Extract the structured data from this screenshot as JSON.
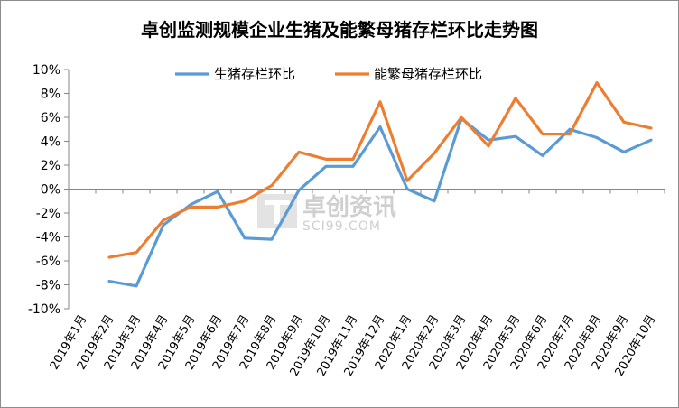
{
  "watermark": {
    "brand": "卓创资讯",
    "site": "SCI99.COM"
  },
  "chart_data": {
    "type": "line",
    "title": "卓创监测规模企业生猪及能繁母猪存栏环比走势图",
    "xlabel": "",
    "ylabel": "",
    "ylim": [
      -10,
      10
    ],
    "yticks": [
      -10,
      -8,
      -6,
      -4,
      -2,
      0,
      2,
      4,
      6,
      8,
      10
    ],
    "ytick_labels": [
      "-10%",
      "-8%",
      "-6%",
      "-4%",
      "-2%",
      "0%",
      "2%",
      "4%",
      "6%",
      "8%",
      "10%"
    ],
    "grid": false,
    "legend": "top-center",
    "categories": [
      "2019年1月",
      "2019年2月",
      "2019年3月",
      "2019年4月",
      "2019年5月",
      "2019年6月",
      "2019年7月",
      "2019年8月",
      "2019年9月",
      "2019年10月",
      "2019年11月",
      "2019年12月",
      "2020年1月",
      "2020年2月",
      "2020年3月",
      "2020年4月",
      "2020年5月",
      "2020年6月",
      "2020年7月",
      "2020年8月",
      "2020年9月",
      "2020年10月"
    ],
    "series": [
      {
        "name": "生猪存栏环比",
        "color": "#5b9bd5",
        "values": [
          null,
          -7.7,
          -8.1,
          -3.0,
          -1.3,
          -0.2,
          -4.1,
          -4.2,
          -0.1,
          1.9,
          1.9,
          5.2,
          0.0,
          -1.0,
          5.9,
          4.1,
          4.4,
          2.8,
          5.0,
          4.3,
          3.1,
          4.1
        ]
      },
      {
        "name": "能繁母猪存栏环比",
        "color": "#ed7d31",
        "values": [
          null,
          -5.7,
          -5.3,
          -2.6,
          -1.5,
          -1.5,
          -1.0,
          0.3,
          3.1,
          2.5,
          2.5,
          7.3,
          0.7,
          3.0,
          6.0,
          3.6,
          7.6,
          4.6,
          4.6,
          8.9,
          5.6,
          5.1
        ]
      }
    ]
  }
}
